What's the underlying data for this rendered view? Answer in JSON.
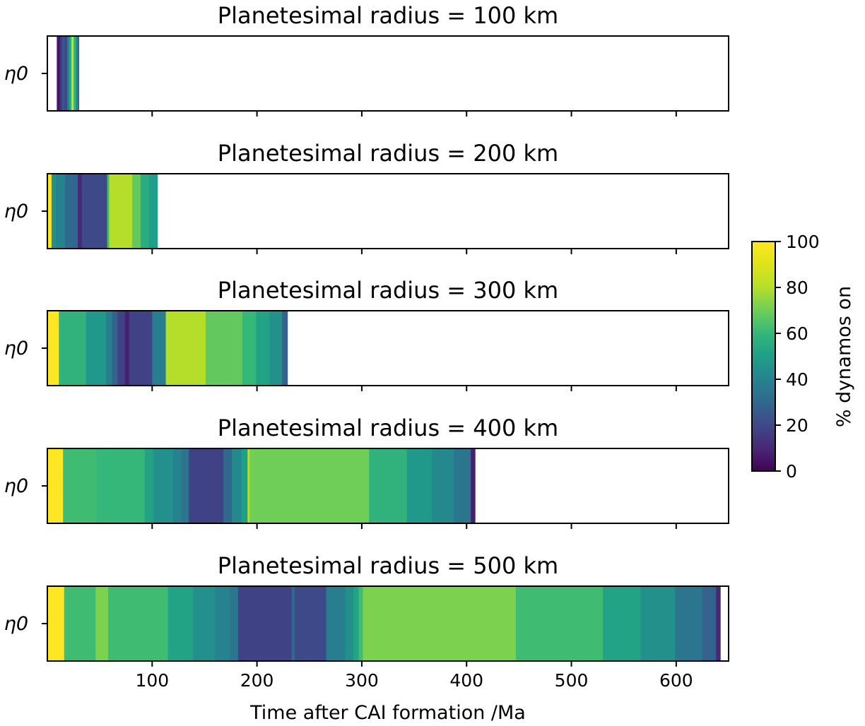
{
  "chart_data": {
    "type": "heatmap",
    "xlabel": "Time after CAI formation /Ma",
    "xlim": [
      0,
      650
    ],
    "xticks": [
      100,
      200,
      300,
      400,
      500,
      600
    ],
    "ylabel_tick": "η0",
    "colorbar": {
      "label": "% dynamos on",
      "range": [
        0,
        100
      ],
      "ticks": [
        0,
        20,
        40,
        60,
        80,
        100
      ],
      "colormap": "viridis"
    },
    "panels": [
      {
        "title": "Planetesimal radius = 100 km",
        "segments": [
          {
            "start": 9,
            "end": 12,
            "value": 5
          },
          {
            "start": 12,
            "end": 14,
            "value": 15
          },
          {
            "start": 14,
            "end": 16,
            "value": 25
          },
          {
            "start": 16,
            "end": 19,
            "value": 20
          },
          {
            "start": 19,
            "end": 21,
            "value": 40
          },
          {
            "start": 21,
            "end": 23,
            "value": 55
          },
          {
            "start": 23,
            "end": 25,
            "value": 85
          },
          {
            "start": 25,
            "end": 27,
            "value": 60
          },
          {
            "start": 27,
            "end": 29,
            "value": 45
          },
          {
            "start": 29,
            "end": 30,
            "value": 30
          }
        ]
      },
      {
        "title": "Planetesimal radius = 200 km",
        "segments": [
          {
            "start": 0,
            "end": 4,
            "value": 100
          },
          {
            "start": 4,
            "end": 8,
            "value": 45
          },
          {
            "start": 8,
            "end": 17,
            "value": 40
          },
          {
            "start": 17,
            "end": 29,
            "value": 30
          },
          {
            "start": 29,
            "end": 33,
            "value": 10
          },
          {
            "start": 33,
            "end": 57,
            "value": 20
          },
          {
            "start": 57,
            "end": 59,
            "value": 62
          },
          {
            "start": 59,
            "end": 81,
            "value": 80
          },
          {
            "start": 81,
            "end": 89,
            "value": 68
          },
          {
            "start": 89,
            "end": 97,
            "value": 55
          },
          {
            "start": 97,
            "end": 105,
            "value": 50
          }
        ]
      },
      {
        "title": "Planetesimal radius = 300 km",
        "segments": [
          {
            "start": 0,
            "end": 11,
            "value": 100
          },
          {
            "start": 11,
            "end": 37,
            "value": 58
          },
          {
            "start": 37,
            "end": 56,
            "value": 48
          },
          {
            "start": 56,
            "end": 62,
            "value": 38
          },
          {
            "start": 62,
            "end": 67,
            "value": 28
          },
          {
            "start": 67,
            "end": 74,
            "value": 18
          },
          {
            "start": 74,
            "end": 78,
            "value": 8
          },
          {
            "start": 78,
            "end": 100,
            "value": 18
          },
          {
            "start": 100,
            "end": 113,
            "value": 38
          },
          {
            "start": 113,
            "end": 151,
            "value": 80
          },
          {
            "start": 151,
            "end": 186,
            "value": 68
          },
          {
            "start": 186,
            "end": 199,
            "value": 60
          },
          {
            "start": 199,
            "end": 212,
            "value": 52
          },
          {
            "start": 212,
            "end": 224,
            "value": 45
          },
          {
            "start": 224,
            "end": 229,
            "value": 28
          }
        ]
      },
      {
        "title": "Planetesimal radius = 400 km",
        "segments": [
          {
            "start": 0,
            "end": 15,
            "value": 100
          },
          {
            "start": 15,
            "end": 47,
            "value": 62
          },
          {
            "start": 47,
            "end": 93,
            "value": 60
          },
          {
            "start": 93,
            "end": 101,
            "value": 52
          },
          {
            "start": 101,
            "end": 120,
            "value": 45
          },
          {
            "start": 120,
            "end": 128,
            "value": 40
          },
          {
            "start": 128,
            "end": 135,
            "value": 35
          },
          {
            "start": 135,
            "end": 168,
            "value": 18
          },
          {
            "start": 168,
            "end": 176,
            "value": 30
          },
          {
            "start": 176,
            "end": 185,
            "value": 42
          },
          {
            "start": 185,
            "end": 191,
            "value": 50
          },
          {
            "start": 191,
            "end": 193,
            "value": 80
          },
          {
            "start": 193,
            "end": 307,
            "value": 70
          },
          {
            "start": 307,
            "end": 343,
            "value": 58
          },
          {
            "start": 343,
            "end": 367,
            "value": 48
          },
          {
            "start": 367,
            "end": 388,
            "value": 42
          },
          {
            "start": 388,
            "end": 404,
            "value": 35
          },
          {
            "start": 404,
            "end": 408,
            "value": 8
          }
        ]
      },
      {
        "title": "Planetesimal radius = 500 km",
        "segments": [
          {
            "start": 0,
            "end": 16,
            "value": 100
          },
          {
            "start": 16,
            "end": 46,
            "value": 62
          },
          {
            "start": 46,
            "end": 58,
            "value": 72
          },
          {
            "start": 58,
            "end": 115,
            "value": 62
          },
          {
            "start": 115,
            "end": 139,
            "value": 52
          },
          {
            "start": 139,
            "end": 160,
            "value": 45
          },
          {
            "start": 160,
            "end": 174,
            "value": 40
          },
          {
            "start": 174,
            "end": 182,
            "value": 35
          },
          {
            "start": 182,
            "end": 233,
            "value": 18
          },
          {
            "start": 233,
            "end": 236,
            "value": 30
          },
          {
            "start": 236,
            "end": 266,
            "value": 20
          },
          {
            "start": 266,
            "end": 284,
            "value": 38
          },
          {
            "start": 284,
            "end": 292,
            "value": 45
          },
          {
            "start": 292,
            "end": 297,
            "value": 52
          },
          {
            "start": 297,
            "end": 301,
            "value": 62
          },
          {
            "start": 301,
            "end": 447,
            "value": 72
          },
          {
            "start": 447,
            "end": 530,
            "value": 62
          },
          {
            "start": 530,
            "end": 566,
            "value": 52
          },
          {
            "start": 566,
            "end": 599,
            "value": 45
          },
          {
            "start": 599,
            "end": 625,
            "value": 35
          },
          {
            "start": 625,
            "end": 638,
            "value": 28
          },
          {
            "start": 638,
            "end": 642,
            "value": 10
          }
        ]
      }
    ]
  }
}
